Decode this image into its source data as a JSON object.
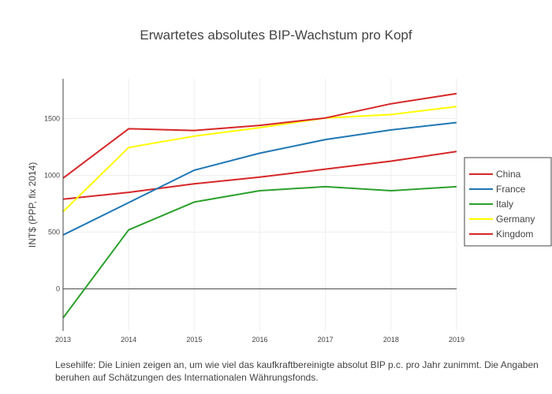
{
  "chart_data": {
    "type": "line",
    "title": "Erwartetes  absolutes BIP-Wachstum pro Kopf",
    "xlabel": "",
    "ylabel": "INT$ (PPP, fix 2014)",
    "x": [
      2013,
      2014,
      2015,
      2016,
      2017,
      2018,
      2019
    ],
    "x_tick_labels": [
      "2013",
      "2014",
      "2015",
      "2016",
      "2017",
      "2018",
      "2019"
    ],
    "xlim": [
      2013,
      2019
    ],
    "ylim": [
      -370,
      1850
    ],
    "y_ticks": [
      0,
      500,
      1000,
      1500
    ],
    "y_tick_labels": [
      "0",
      "500",
      "1000",
      "1500"
    ],
    "grid": true,
    "legend_position": "right",
    "series": [
      {
        "name": "China",
        "color": "#d62728",
        "values": [
          790,
          850,
          925,
          985,
          1055,
          1125,
          1210
        ]
      },
      {
        "name": "France",
        "color": "#1f77b4",
        "values": [
          475,
          760,
          1045,
          1195,
          1315,
          1400,
          1465
        ]
      },
      {
        "name": "Italy",
        "color": "#2ca02c",
        "values": [
          -255,
          520,
          765,
          865,
          900,
          865,
          900
        ]
      },
      {
        "name": "Germany",
        "color": "#ffff00",
        "values": [
          680,
          1245,
          1345,
          1420,
          1505,
          1535,
          1605
        ]
      },
      {
        "name": "Kingdom",
        "color": "#d62728",
        "values": [
          975,
          1410,
          1395,
          1440,
          1505,
          1630,
          1720
        ]
      }
    ]
  },
  "note": {
    "line1": "Lesehilfe:  Die Linien  zeigen an, um wie viel das kaufkraftbereinigte absolut BIP p.c. pro Jahr zunimmt. Die Angaben",
    "line2": "beruhen auf Schätzungen des Internationalen Währungsfonds."
  }
}
